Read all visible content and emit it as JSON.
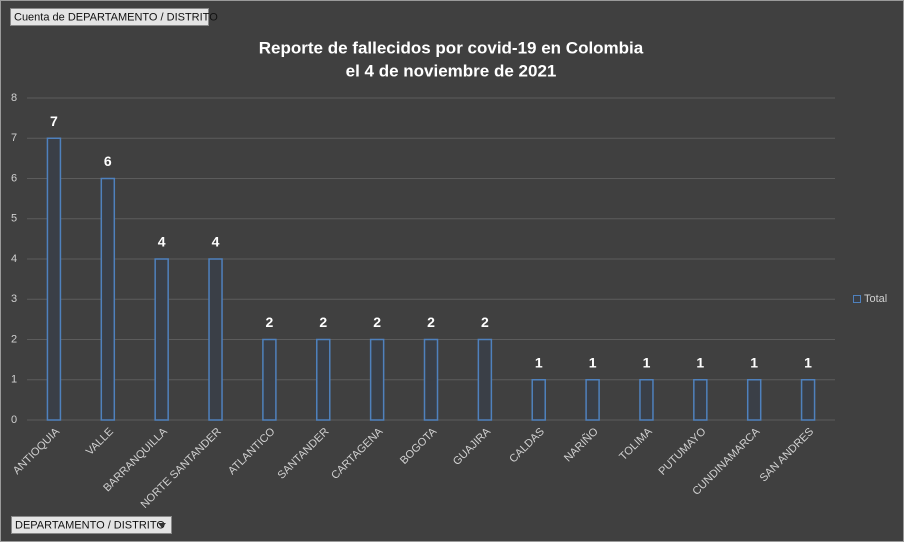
{
  "chart_data": {
    "type": "bar",
    "title": "Reporte de fallecidos por covid-19 en Colombia",
    "subtitle": "el 4 de noviembre de 2021",
    "value_field_button": "Cuenta de DEPARTAMENTO / DISTRITO",
    "axis_field_button": "DEPARTAMENTO / DISTRITO",
    "categories": [
      "ANTIOQUIA",
      "VALLE",
      "BARRANQUILLA",
      "NORTE SANTANDER",
      "ATLANTICO",
      "SANTANDER",
      "CARTAGENA",
      "BOGOTA",
      "GUAJIRA",
      "CALDAS",
      "NARIÑO",
      "TOLIMA",
      "PUTUMAYO",
      "CUNDINAMARCA",
      "SAN ANDRES"
    ],
    "series": [
      {
        "name": "Total",
        "color": "#4f81bd",
        "values": [
          7,
          6,
          4,
          4,
          2,
          2,
          2,
          2,
          2,
          1,
          1,
          1,
          1,
          1,
          1
        ]
      }
    ],
    "ylim": [
      0,
      8
    ],
    "yticks": [
      0,
      1,
      2,
      3,
      4,
      5,
      6,
      7,
      8
    ],
    "grid": true,
    "legend": "right",
    "data_labels": true
  }
}
